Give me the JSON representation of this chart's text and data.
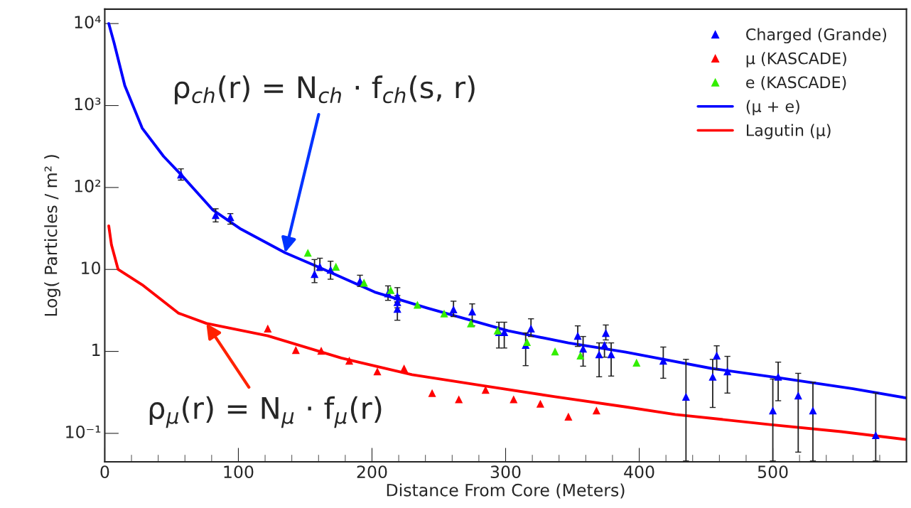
{
  "chart_data": {
    "type": "scatter",
    "xlabel": "Distance From Core (Meters)",
    "ylabel": "Log( Particles / m² )",
    "log": "y",
    "xlim": [
      0,
      600
    ],
    "xticks": [
      0,
      100,
      200,
      300,
      400,
      500
    ],
    "ylim": [
      0.045,
      15000
    ],
    "yticks": [
      {
        "value": 0.1,
        "label": "10⁻¹"
      },
      1,
      10,
      {
        "value": 100,
        "label": "10²"
      },
      {
        "value": 1000,
        "label": "10³"
      },
      {
        "value": 10000,
        "label": "10⁴"
      }
    ],
    "grid": false,
    "legend": "top right",
    "marker": "triangle",
    "annotations": [
      {
        "text": "ρ$_{ch}$(r) = N$_{ch}$ · f$_{ch}$(s, r)",
        "x": 135,
        "y": 16
      },
      {
        "text": "ρ$_{μ}$(r) = N$_{μ}$ · f$_{μ}$(r)",
        "x": 76,
        "y": 2.2
      }
    ],
    "series": [
      {
        "name": "Charged (Grande)",
        "color": "#0000ff",
        "x": [
          57,
          83,
          94,
          157,
          161,
          169,
          191,
          212,
          219,
          219,
          219,
          261,
          275,
          295,
          299,
          319,
          315,
          354,
          358,
          375,
          374,
          370,
          379,
          418,
          435,
          455,
          458,
          466,
          500,
          504,
          519,
          530,
          577
        ],
        "values": [
          144,
          46,
          43.5,
          8.8,
          10.8,
          9.9,
          7.2,
          5.1,
          4.7,
          4.0,
          3.3,
          3.25,
          3.06,
          1.72,
          1.72,
          1.9,
          1.2,
          1.55,
          1.08,
          1.68,
          1.2,
          0.92,
          0.92,
          0.77,
          0.28,
          0.49,
          0.89,
          0.57,
          0.19,
          0.49,
          0.29,
          0.19,
          0.095
        ],
        "errors": [
          [
            123,
            169
          ],
          [
            38,
            55
          ],
          [
            35.7,
            48
          ],
          [
            6.9,
            13.2
          ],
          [
            9.7,
            13.7
          ],
          [
            7.6,
            12.6
          ],
          [
            6.2,
            8.5
          ],
          [
            4.2,
            6.3
          ],
          [
            4.0,
            6.0
          ],
          [
            3.4,
            4.8
          ],
          [
            2.4,
            4.0
          ],
          [
            2.66,
            4.1
          ],
          [
            2.05,
            3.8
          ],
          [
            1.1,
            2.27
          ],
          [
            1.1,
            2.27
          ],
          [
            1.52,
            2.5
          ],
          [
            0.67,
            1.68
          ],
          [
            1.15,
            2.05
          ],
          [
            0.66,
            1.52
          ],
          [
            1.38,
            2.1
          ],
          [
            0.85,
            1.27
          ],
          [
            0.49,
            1.27
          ],
          [
            0.5,
            1.27
          ],
          [
            0.47,
            1.13
          ],
          [
            0.046,
            0.8
          ],
          [
            0.207,
            0.8
          ],
          [
            0.6,
            1.17
          ],
          [
            0.31,
            0.87
          ],
          [
            0.046,
            0.46
          ],
          [
            0.25,
            0.74
          ],
          [
            0.059,
            0.54
          ],
          [
            0.046,
            0.42
          ],
          [
            0.046,
            0.31
          ]
        ]
      },
      {
        "name": "μ (KASCADE)",
        "color": "#ff0000",
        "x": [
          122,
          143,
          162,
          183,
          204,
          224,
          245,
          265,
          285,
          306,
          326,
          347,
          368
        ],
        "values": [
          1.9,
          1.04,
          1.02,
          0.77,
          0.57,
          0.62,
          0.31,
          0.26,
          0.34,
          0.26,
          0.23,
          0.16,
          0.19
        ]
      },
      {
        "name": "e (KASCADE)",
        "color": "#33ee00",
        "x": [
          152,
          173,
          194,
          214,
          234,
          254,
          274,
          294,
          316,
          337,
          356,
          398
        ],
        "values": [
          16,
          10.8,
          6.9,
          5.6,
          3.7,
          2.9,
          2.2,
          1.8,
          1.3,
          1.0,
          0.89,
          0.73
        ]
      },
      {
        "name": "(μ + e)",
        "type": "line",
        "marker": "none",
        "color": "#0000ff",
        "x": [
          3,
          7,
          15,
          28,
          44,
          57,
          81,
          102,
          135,
          161,
          202,
          241,
          302,
          347,
          390,
          454,
          507,
          560,
          600
        ],
        "values": [
          10000,
          5800,
          1750,
          530,
          240,
          144,
          53,
          31,
          16,
          10.5,
          5.3,
          3.4,
          1.78,
          1.27,
          0.98,
          0.62,
          0.47,
          0.35,
          0.27
        ]
      },
      {
        "name": "Lagutin (μ)",
        "type": "line",
        "marker": "none",
        "color": "#ff0000",
        "x": [
          3,
          5,
          10,
          28,
          55,
          76,
          122,
          177,
          230,
          284,
          337,
          390,
          427,
          498,
          551,
          600
        ],
        "values": [
          34,
          20,
          10,
          6.5,
          2.94,
          2.2,
          1.55,
          0.83,
          0.52,
          0.38,
          0.28,
          0.21,
          0.17,
          0.128,
          0.105,
          0.084
        ]
      }
    ]
  }
}
